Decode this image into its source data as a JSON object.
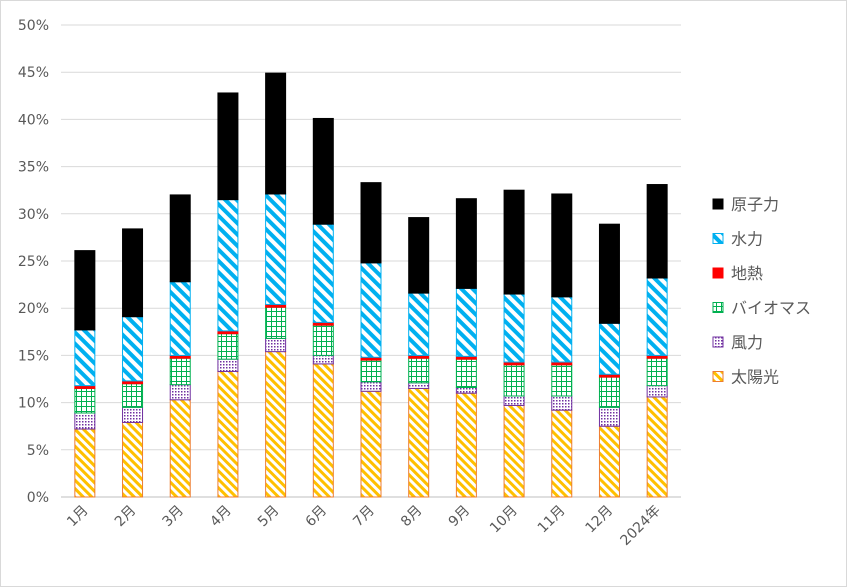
{
  "chart_data": {
    "type": "bar",
    "stacked": true,
    "categories": [
      "1月",
      "2月",
      "3月",
      "4月",
      "5月",
      "6月",
      "7月",
      "8月",
      "9月",
      "10月",
      "11月",
      "12月",
      "2024年"
    ],
    "ylim": [
      0,
      50
    ],
    "y_ticks": [
      "0%",
      "5%",
      "10%",
      "15%",
      "20%",
      "25%",
      "30%",
      "35%",
      "40%",
      "45%",
      "50%"
    ],
    "grid": true,
    "legend_position": "right",
    "series": [
      {
        "name": "太陽光",
        "color": "#ffc000",
        "outline": "#ed7d31",
        "pattern": "diag-stripes",
        "values": [
          7.2,
          7.9,
          10.3,
          13.3,
          15.4,
          14.1,
          11.2,
          11.5,
          11.0,
          9.7,
          9.2,
          7.5,
          10.6
        ]
      },
      {
        "name": "風力",
        "color": "#7030a0",
        "outline": "#7030a0",
        "pattern": "dots",
        "values": [
          1.7,
          1.6,
          1.6,
          1.3,
          1.4,
          0.9,
          1.0,
          0.6,
          0.6,
          1.0,
          1.5,
          2.0,
          1.2
        ]
      },
      {
        "name": "バイオマス",
        "color": "#00b050",
        "outline": "#00b050",
        "pattern": "grid",
        "values": [
          2.6,
          2.5,
          2.8,
          2.7,
          3.3,
          3.2,
          2.3,
          2.6,
          3.0,
          3.3,
          3.3,
          3.2,
          2.9
        ]
      },
      {
        "name": "地熱",
        "color": "#ff0000",
        "outline": "#ff0000",
        "pattern": "solid",
        "values": [
          0.3,
          0.3,
          0.3,
          0.3,
          0.3,
          0.3,
          0.3,
          0.3,
          0.3,
          0.3,
          0.3,
          0.3,
          0.3
        ]
      },
      {
        "name": "水力",
        "color": "#00b0f0",
        "outline": "#00b0f0",
        "pattern": "wide-diag",
        "values": [
          5.9,
          6.8,
          7.8,
          13.9,
          11.7,
          10.4,
          10.0,
          6.6,
          7.2,
          7.2,
          6.9,
          5.4,
          8.2
        ]
      },
      {
        "name": "原子力",
        "color": "#000000",
        "outline": "#000000",
        "pattern": "solid",
        "values": [
          8.4,
          9.3,
          9.2,
          11.3,
          12.8,
          11.2,
          8.5,
          8.0,
          9.5,
          11.0,
          10.9,
          10.5,
          9.9
        ]
      }
    ],
    "legend_order": [
      "原子力",
      "水力",
      "地熱",
      "バイオマス",
      "風力",
      "太陽光"
    ]
  }
}
